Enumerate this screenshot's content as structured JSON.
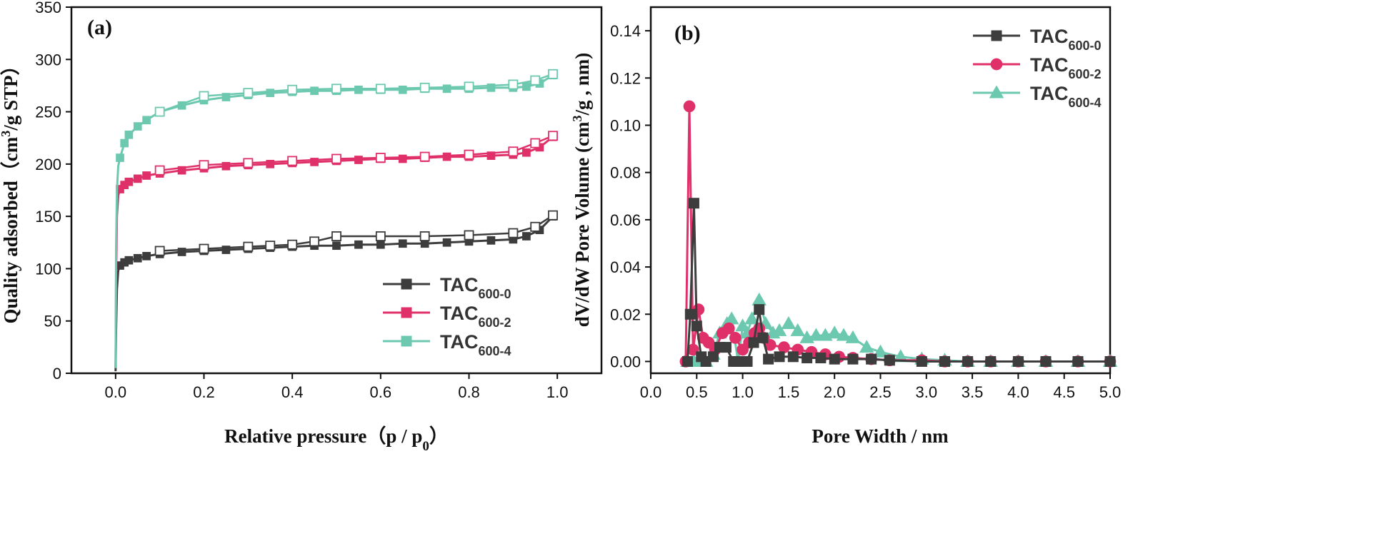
{
  "chart_data": [
    {
      "type": "line",
      "panel_label": "(a)",
      "xlabel": "Relative pressure（p / p",
      "xlabel_sub": "0",
      "xlabel_close": "）",
      "ylabel_pre": "Quality adsorbed（cm",
      "ylabel_sup": "3",
      "ylabel_post": "/g STP）",
      "xlim": [
        -0.1,
        1.1
      ],
      "ylim": [
        0,
        350
      ],
      "xticks": [
        "0.0",
        "0.2",
        "0.4",
        "0.6",
        "0.8",
        "1.0"
      ],
      "xtick_values": [
        0,
        0.2,
        0.4,
        0.6,
        0.8,
        1.0
      ],
      "yticks": [
        "0",
        "50",
        "100",
        "150",
        "200",
        "250",
        "300",
        "350"
      ],
      "ytick_values": [
        0,
        50,
        100,
        150,
        200,
        250,
        300,
        350
      ],
      "legend_position": "bottom-right",
      "series": [
        {
          "name": "TAC",
          "sub": "600-0",
          "color": "#3d3d3d",
          "adsorption": {
            "x": [
              0.0,
              0.001,
              0.003,
              0.006,
              0.01,
              0.02,
              0.03,
              0.05,
              0.07,
              0.1,
              0.15,
              0.2,
              0.25,
              0.3,
              0.35,
              0.4,
              0.45,
              0.5,
              0.55,
              0.6,
              0.65,
              0.7,
              0.75,
              0.8,
              0.85,
              0.9,
              0.93,
              0.96,
              0.99
            ],
            "y": [
              2,
              40,
              80,
              98,
              103,
              106,
              108,
              110,
              112,
              114,
              116,
              117,
              118,
              119,
              120,
              121,
              122,
              122,
              123,
              123,
              124,
              124,
              125,
              126,
              127,
              128,
              131,
              137,
              150
            ]
          },
          "desorption": {
            "x": [
              0.99,
              0.95,
              0.9,
              0.8,
              0.7,
              0.6,
              0.5,
              0.45,
              0.4,
              0.35,
              0.3,
              0.2,
              0.1
            ],
            "y": [
              151,
              140,
              134,
              132,
              131,
              131,
              131,
              126,
              123,
              122,
              121,
              119,
              117
            ]
          }
        },
        {
          "name": "TAC",
          "sub": "600-2",
          "color": "#e0306a",
          "adsorption": {
            "x": [
              0.0,
              0.001,
              0.003,
              0.006,
              0.01,
              0.02,
              0.03,
              0.05,
              0.07,
              0.1,
              0.15,
              0.2,
              0.25,
              0.3,
              0.35,
              0.4,
              0.45,
              0.5,
              0.55,
              0.6,
              0.65,
              0.7,
              0.75,
              0.8,
              0.85,
              0.9,
              0.93,
              0.96,
              0.99
            ],
            "y": [
              5,
              90,
              150,
              170,
              176,
              180,
              183,
              186,
              189,
              191,
              194,
              196,
              198,
              199,
              200,
              201,
              202,
              203,
              204,
              205,
              205,
              206,
              207,
              207,
              208,
              209,
              211,
              216,
              226
            ]
          },
          "desorption": {
            "x": [
              0.99,
              0.95,
              0.9,
              0.8,
              0.7,
              0.6,
              0.5,
              0.4,
              0.3,
              0.2,
              0.1
            ],
            "y": [
              227,
              220,
              212,
              209,
              207,
              206,
              205,
              203,
              201,
              199,
              194
            ]
          }
        },
        {
          "name": "TAC",
          "sub": "600-4",
          "color": "#6cc9b0",
          "adsorption": {
            "x": [
              0.0,
              0.001,
              0.003,
              0.006,
              0.01,
              0.02,
              0.03,
              0.05,
              0.07,
              0.1,
              0.15,
              0.2,
              0.25,
              0.3,
              0.35,
              0.4,
              0.45,
              0.5,
              0.55,
              0.6,
              0.65,
              0.7,
              0.75,
              0.8,
              0.85,
              0.9,
              0.93,
              0.96,
              0.99
            ],
            "y": [
              5,
              120,
              175,
              198,
              206,
              220,
              228,
              236,
              242,
              250,
              256,
              261,
              264,
              266,
              268,
              269,
              270,
              270,
              271,
              271,
              271,
              272,
              272,
              272,
              273,
              273,
              274,
              277,
              285
            ]
          },
          "desorption": {
            "x": [
              0.99,
              0.95,
              0.9,
              0.8,
              0.7,
              0.6,
              0.5,
              0.4,
              0.3,
              0.2,
              0.1
            ],
            "y": [
              286,
              280,
              276,
              274,
              273,
              272,
              272,
              271,
              268,
              265,
              250
            ]
          }
        }
      ]
    },
    {
      "type": "line",
      "panel_label": "(b)",
      "xlabel": "Pore Width / nm",
      "ylabel_pre": "dV/dW Pore Volume (cm",
      "ylabel_sup": "3",
      "ylabel_post": "/g , nm)",
      "xlim": [
        0,
        5
      ],
      "ylim": [
        -0.005,
        0.15
      ],
      "xticks": [
        "0.0",
        "0.5",
        "1.0",
        "1.5",
        "2.0",
        "2.5",
        "3.0",
        "3.5",
        "4.0",
        "4.5",
        "5.0"
      ],
      "xtick_values": [
        0,
        0.5,
        1.0,
        1.5,
        2.0,
        2.5,
        3.0,
        3.5,
        4.0,
        4.5,
        5.0
      ],
      "yticks": [
        "0.00",
        "0.02",
        "0.04",
        "0.06",
        "0.08",
        "0.10",
        "0.12",
        "0.14"
      ],
      "ytick_values": [
        0,
        0.02,
        0.04,
        0.06,
        0.08,
        0.1,
        0.12,
        0.14
      ],
      "legend_position": "top-right",
      "series": [
        {
          "name": "TAC",
          "sub": "600-0",
          "color": "#3d3d3d",
          "marker": "square",
          "x": [
            0.4,
            0.43,
            0.47,
            0.5,
            0.55,
            0.6,
            0.68,
            0.75,
            0.82,
            0.9,
            0.97,
            1.05,
            1.12,
            1.18,
            1.22,
            1.28,
            1.4,
            1.55,
            1.7,
            1.85,
            2.0,
            2.2,
            2.4,
            2.6,
            2.95,
            3.2,
            3.45,
            3.7,
            4.0,
            4.3,
            4.65,
            5.0
          ],
          "y": [
            0,
            0.02,
            0.067,
            0.015,
            0.002,
            0,
            0.002,
            0.006,
            0.006,
            0,
            0,
            0,
            0.008,
            0.022,
            0.01,
            0.001,
            0.002,
            0.002,
            0.0015,
            0.0015,
            0.001,
            0.001,
            0.001,
            0.0005,
            0,
            0,
            0,
            0,
            0,
            0,
            0,
            0
          ]
        },
        {
          "name": "TAC",
          "sub": "600-2",
          "color": "#e0306a",
          "marker": "circle",
          "x": [
            0.38,
            0.42,
            0.46,
            0.52,
            0.57,
            0.63,
            0.7,
            0.78,
            0.85,
            0.92,
            1.0,
            1.07,
            1.13,
            1.18,
            1.23,
            1.3,
            1.45,
            1.6,
            1.75,
            1.9,
            2.05,
            2.2,
            2.4,
            2.6,
            2.95,
            3.2,
            3.45,
            3.7,
            4.0,
            4.3,
            4.65,
            5.0
          ],
          "y": [
            0,
            0.108,
            0.005,
            0.022,
            0.01,
            0.008,
            0.005,
            0.012,
            0.014,
            0.01,
            0.005,
            0.008,
            0.012,
            0.014,
            0.01,
            0.007,
            0.006,
            0.005,
            0.004,
            0.003,
            0.002,
            0.0015,
            0.001,
            0.0005,
            0.0005,
            0,
            0,
            0,
            0,
            0,
            0,
            0
          ]
        },
        {
          "name": "TAC",
          "sub": "600-4",
          "color": "#6cc9b0",
          "marker": "triangle",
          "x": [
            0.4,
            0.47,
            0.53,
            0.6,
            0.68,
            0.75,
            0.83,
            0.88,
            0.95,
            1.0,
            1.05,
            1.1,
            1.18,
            1.25,
            1.33,
            1.4,
            1.5,
            1.6,
            1.7,
            1.8,
            1.9,
            2.0,
            2.1,
            2.2,
            2.35,
            2.5,
            2.72,
            2.95,
            3.2,
            3.45,
            3.7,
            4.0,
            4.3,
            4.65,
            5.0
          ],
          "y": [
            0,
            0,
            0,
            0,
            0.003,
            0.012,
            0.016,
            0.018,
            0.0,
            0.015,
            0.012,
            0.018,
            0.026,
            0.016,
            0.012,
            0.013,
            0.016,
            0.013,
            0.01,
            0.011,
            0.011,
            0.012,
            0.011,
            0.01,
            0.006,
            0.004,
            0.002,
            0.001,
            0.0005,
            0,
            0,
            0,
            0,
            0,
            0
          ]
        }
      ]
    }
  ]
}
